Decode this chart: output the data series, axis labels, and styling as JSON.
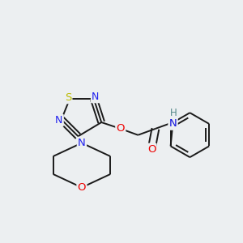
{
  "background_color": "#eceff1",
  "bond_color": "#1a1a1a",
  "atom_colors": {
    "O": "#ee0000",
    "N": "#2020ee",
    "N_amide": "#1010dd",
    "N_H": "#558888",
    "S": "#bbbb00",
    "H": "#558888"
  },
  "figsize": [
    3.0,
    3.0
  ],
  "dpi": 100
}
